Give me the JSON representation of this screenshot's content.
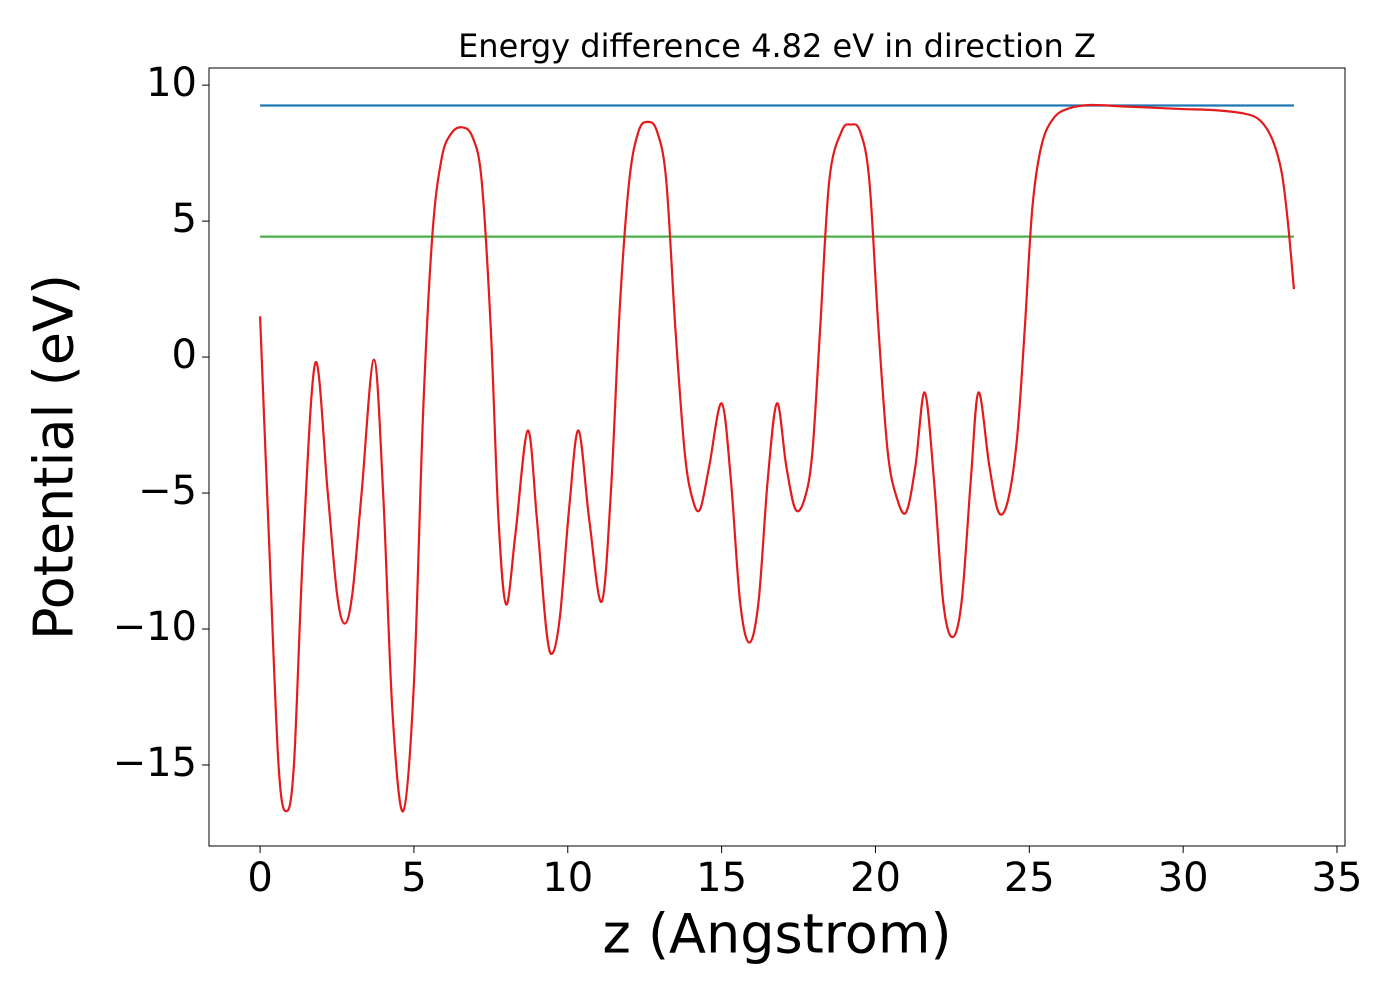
{
  "chart_data": {
    "type": "line",
    "title": "Energy difference 4.82 eV in direction Z",
    "xlabel": "z (Angstrom)",
    "ylabel": "Potential (eV)",
    "xlim": [
      -1.66,
      35.26
    ],
    "ylim": [
      -17.98,
      10.63
    ],
    "xticks": [
      0,
      5,
      10,
      15,
      20,
      25,
      30,
      35
    ],
    "yticks": [
      {
        "value": -15,
        "label": "−15"
      },
      {
        "value": -10,
        "label": "−10"
      },
      {
        "value": -5,
        "label": "−5"
      },
      0,
      5,
      10
    ],
    "series": [
      {
        "color": "#e41a1c",
        "x": [
          0,
          0.3,
          0.6,
          0.85,
          1.1,
          1.4,
          1.8,
          2.2,
          2.5,
          2.75,
          3.0,
          3.3,
          3.7,
          4.0,
          4.3,
          4.65,
          5.0,
          5.3,
          5.6,
          5.9,
          6.2,
          6.55,
          6.9,
          7.2,
          7.5,
          7.75,
          8.0,
          8.3,
          8.7,
          9.0,
          9.3,
          9.5,
          9.75,
          10.05,
          10.35,
          10.7,
          11.1,
          11.4,
          11.7,
          12.0,
          12.3,
          12.6,
          12.9,
          13.2,
          13.5,
          13.8,
          14.05,
          14.3,
          14.6,
          15.0,
          15.3,
          15.6,
          15.9,
          16.2,
          16.5,
          16.8,
          17.1,
          17.4,
          17.7,
          17.95,
          18.2,
          18.5,
          18.9,
          19.2,
          19.5,
          19.8,
          20.1,
          20.4,
          20.7,
          21.0,
          21.3,
          21.6,
          21.9,
          22.2,
          22.5,
          22.8,
          23.1,
          23.35,
          23.7,
          24.0,
          24.3,
          24.6,
          24.85,
          25.1,
          25.4,
          25.8,
          26.3,
          27.0,
          28,
          29,
          30,
          31,
          32,
          32.5,
          32.9,
          33.2,
          33.4,
          33.6
        ],
        "values": [
          1.5,
          -7,
          -15,
          -16.7,
          -15,
          -7,
          -0.2,
          -5,
          -8.7,
          -9.8,
          -8.7,
          -5,
          -0.1,
          -5,
          -13,
          -16.7,
          -12,
          -2,
          4.5,
          7.3,
          8.2,
          8.45,
          8.1,
          6.5,
          1,
          -6,
          -9.1,
          -6.5,
          -2.7,
          -6,
          -10,
          -10.9,
          -9.5,
          -5.5,
          -2.7,
          -6,
          -9.0,
          -5,
          2,
          6.5,
          8.3,
          8.65,
          8.3,
          6.5,
          1,
          -3.5,
          -5.2,
          -5.6,
          -4,
          -1.7,
          -4.5,
          -9,
          -10.5,
          -9,
          -4.5,
          -1.7,
          -4,
          -5.6,
          -5.2,
          -3.5,
          1,
          6.5,
          8.3,
          8.55,
          8.3,
          6.5,
          1,
          -3.5,
          -5.2,
          -5.7,
          -4,
          -1.3,
          -4.5,
          -9,
          -10.3,
          -9,
          -4.5,
          -1.3,
          -4,
          -5.7,
          -5.3,
          -3,
          1,
          5.5,
          7.8,
          8.8,
          9.15,
          9.27,
          9.22,
          9.17,
          9.12,
          9.08,
          8.95,
          8.7,
          8.0,
          6.8,
          5,
          2.5
        ]
      },
      {
        "color": "#1f77b4",
        "x": [
          0,
          33.6
        ],
        "values": [
          9.25,
          9.25
        ]
      },
      {
        "color": "#4daf4a",
        "x": [
          0,
          33.6
        ],
        "values": [
          4.43,
          4.43
        ]
      }
    ]
  }
}
